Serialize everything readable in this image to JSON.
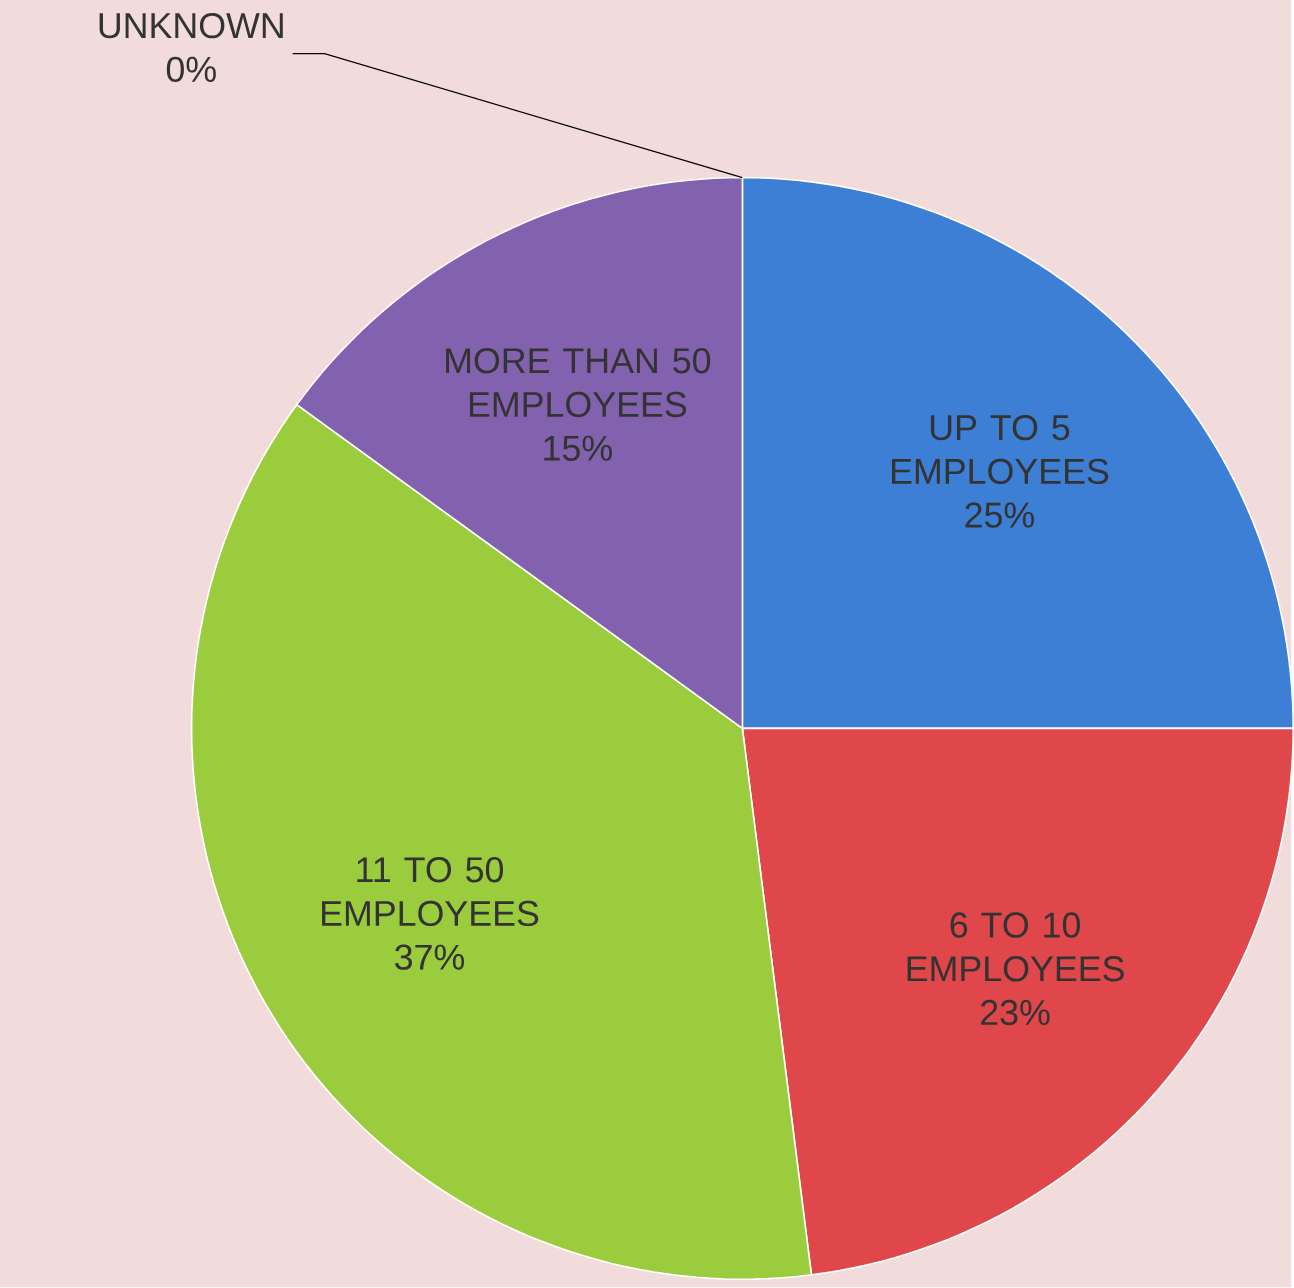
{
  "chart_data": {
    "type": "pie",
    "categories": [
      "UP TO 5 EMPLOYEES",
      "6 TO 10 EMPLOYEES",
      "11 TO 50 EMPLOYEES",
      "MORE THAN 50 EMPLOYEES",
      "UNKNOWN"
    ],
    "values": [
      25,
      23,
      37,
      15,
      0
    ],
    "value_labels": [
      "25%",
      "23%",
      "37%",
      "15%",
      "0%"
    ],
    "colors": [
      "#3c7fd4",
      "#e0474a",
      "#9bcc3e",
      "#8262ae",
      "#2fa4c4"
    ]
  }
}
